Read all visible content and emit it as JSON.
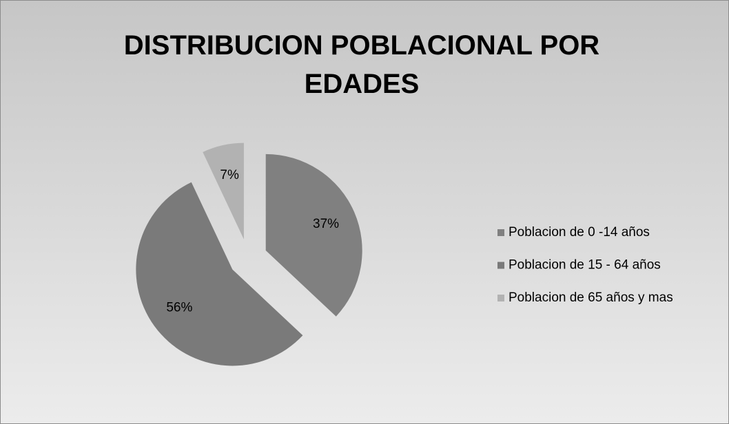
{
  "chart_data": {
    "type": "pie",
    "title": "DISTRIBUCION POBLACIONAL POR EDADES",
    "categories": [
      "Poblacion de 0 -14 años",
      "Poblacion de 15 - 64 años",
      "Poblacion de 65 años y mas"
    ],
    "values": [
      37,
      56,
      7
    ],
    "value_labels": [
      "37%",
      "56%",
      "7%"
    ],
    "colors": [
      "#808080",
      "#7a7a7a",
      "#b2b2b2"
    ],
    "legend": "right"
  }
}
